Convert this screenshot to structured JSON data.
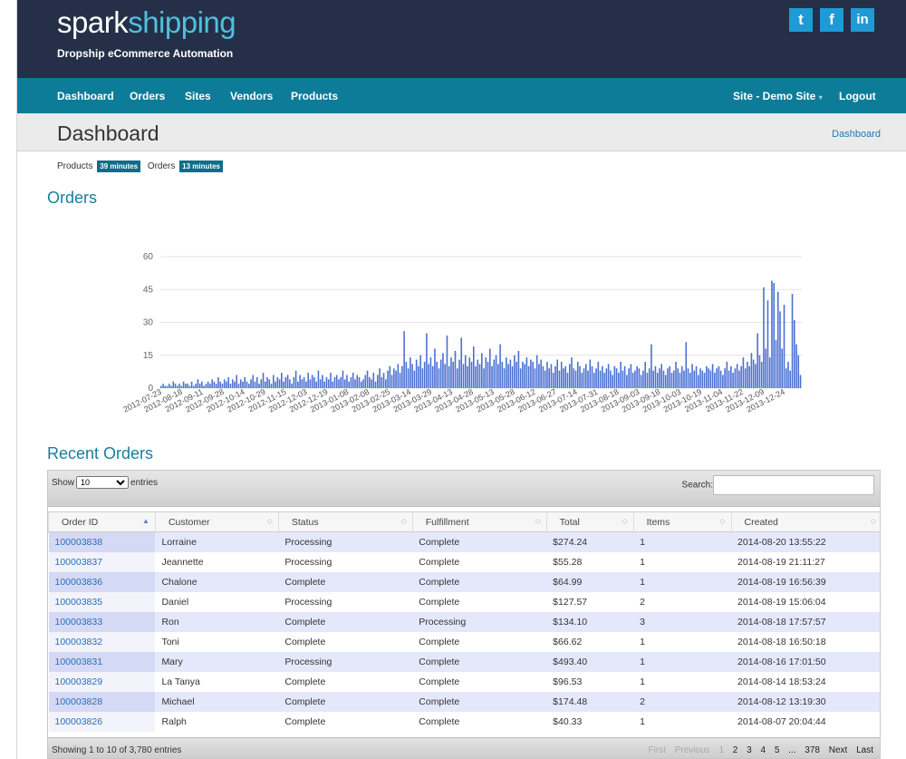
{
  "brand": {
    "name_main": "spark",
    "name_accent": "shipping",
    "tagline": "Dropship eCommerce Automation"
  },
  "social": [
    {
      "label": "t",
      "icon": "twitter-icon"
    },
    {
      "label": "f",
      "icon": "facebook-icon"
    },
    {
      "label": "in",
      "icon": "linkedin-icon"
    }
  ],
  "nav": {
    "items": [
      "Dashboard",
      "Orders",
      "Sites",
      "Vendors",
      "Products"
    ],
    "site_selector": "Site - Demo Site",
    "logout": "Logout"
  },
  "page": {
    "title": "Dashboard",
    "breadcrumb": "Dashboard"
  },
  "sync_status": {
    "products_label": "Products",
    "products_age": "39 minutes",
    "orders_label": "Orders",
    "orders_age": "13 minutes"
  },
  "orders_section": {
    "title": "Orders"
  },
  "chart_data": {
    "type": "bar",
    "title": "Orders",
    "ylim": [
      0,
      60
    ],
    "yticks": [
      0,
      15,
      30,
      45,
      60
    ],
    "grid": true,
    "x_tick_labels": [
      "2012-07-23",
      "2012-08-18",
      "2012-09-11",
      "2012-09-28",
      "2012-10-14",
      "2012-10-29",
      "2012-11-15",
      "2012-12-03",
      "2012-12-19",
      "2013-01-08",
      "2013-02-08",
      "2013-02-25",
      "2013-03-14",
      "2013-03-29",
      "2013-04-13",
      "2013-04-28",
      "2013-05-13",
      "2013-05-28",
      "2013-06-12",
      "2013-06-27",
      "2013-07-14",
      "2013-07-31",
      "2013-08-18",
      "2013-09-03",
      "2013-09-18",
      "2013-10-03",
      "2013-10-19",
      "2013-11-04",
      "2013-11-22",
      "2013-12-09",
      "2013-12-24"
    ],
    "series": [
      {
        "color": "#4a6fd3",
        "values": [
          1,
          2,
          1,
          1,
          2,
          1,
          3,
          2,
          1,
          2,
          1,
          3,
          2,
          2,
          1,
          3,
          1,
          2,
          4,
          2,
          3,
          1,
          2,
          3,
          2,
          4,
          3,
          2,
          5,
          3,
          2,
          4,
          3,
          5,
          2,
          4,
          3,
          6,
          2,
          4,
          3,
          5,
          3,
          2,
          4,
          6,
          3,
          5,
          2,
          4,
          7,
          3,
          5,
          4,
          2,
          6,
          3,
          5,
          4,
          7,
          3,
          5,
          6,
          4,
          2,
          5,
          8,
          3,
          6,
          4,
          5,
          3,
          7,
          4,
          6,
          5,
          3,
          8,
          4,
          6,
          3,
          5,
          4,
          7,
          3,
          5,
          6,
          4,
          5,
          8,
          4,
          6,
          3,
          5,
          7,
          4,
          6,
          5,
          3,
          4,
          6,
          8,
          5,
          4,
          7,
          3,
          6,
          9,
          5,
          7,
          4,
          8,
          10,
          6,
          9,
          8,
          11,
          7,
          10,
          26,
          12,
          9,
          14,
          11,
          8,
          13,
          10,
          15,
          9,
          12,
          25,
          11,
          14,
          10,
          18,
          12,
          9,
          13,
          16,
          11,
          24,
          10,
          14,
          12,
          17,
          9,
          13,
          23,
          11,
          15,
          10,
          14,
          12,
          19,
          10,
          13,
          11,
          16,
          9,
          14,
          12,
          18,
          10,
          13,
          15,
          11,
          20,
          12,
          9,
          14,
          11,
          13,
          10,
          15,
          12,
          17,
          9,
          12,
          11,
          14,
          10,
          13,
          12,
          9,
          15,
          11,
          13,
          10,
          8,
          12,
          9,
          11,
          7,
          10,
          13,
          8,
          12,
          9,
          10,
          7,
          11,
          14,
          9,
          8,
          12,
          10,
          7,
          9,
          11,
          8,
          13,
          10,
          7,
          9,
          12,
          8,
          10,
          7,
          9,
          11,
          8,
          6,
          10,
          9,
          7,
          12,
          8,
          10,
          6,
          9,
          11,
          7,
          8,
          10,
          9,
          6,
          8,
          12,
          7,
          9,
          20,
          8,
          10,
          7,
          9,
          11,
          8,
          6,
          9,
          10,
          7,
          8,
          12,
          9,
          7,
          10,
          8,
          21,
          9,
          7,
          11,
          8,
          10,
          6,
          9,
          8,
          7,
          10,
          9,
          8,
          11,
          7,
          9,
          10,
          8,
          6,
          9,
          12,
          8,
          10,
          7,
          9,
          11,
          8,
          10,
          14,
          9,
          12,
          10,
          16,
          13,
          11,
          25,
          15,
          12,
          46,
          18,
          40,
          14,
          49,
          48,
          22,
          44,
          35,
          18,
          38,
          9,
          12,
          8,
          43,
          31,
          20,
          15,
          6
        ]
      }
    ]
  },
  "recent_orders": {
    "title": "Recent Orders",
    "length_prefix": "Show",
    "length_value": "10",
    "length_suffix": "entries",
    "search_label": "Search:",
    "search_value": "",
    "columns": [
      "Order ID",
      "Customer",
      "Status",
      "Fulfillment",
      "Total",
      "Items",
      "Created"
    ],
    "rows": [
      [
        "100003838",
        "Lorraine",
        "Processing",
        "Complete",
        "$274.24",
        "1",
        "2014-08-20 13:55:22"
      ],
      [
        "100003837",
        "Jeannette",
        "Processing",
        "Complete",
        "$55.28",
        "1",
        "2014-08-19 21:11:27"
      ],
      [
        "100003836",
        "Chalone",
        "Complete",
        "Complete",
        "$64.99",
        "1",
        "2014-08-19 16:56:39"
      ],
      [
        "100003835",
        "Daniel",
        "Processing",
        "Complete",
        "$127.57",
        "2",
        "2014-08-19 15:06:04"
      ],
      [
        "100003833",
        "Ron",
        "Complete",
        "Processing",
        "$134.10",
        "3",
        "2014-08-18 17:57:57"
      ],
      [
        "100003832",
        "Toni",
        "Complete",
        "Complete",
        "$66.62",
        "1",
        "2014-08-18 16:50:18"
      ],
      [
        "100003831",
        "Mary",
        "Processing",
        "Complete",
        "$493.40",
        "1",
        "2014-08-16 17:01:50"
      ],
      [
        "100003829",
        "La Tanya",
        "Complete",
        "Complete",
        "$96.53",
        "1",
        "2014-08-14 18:53:24"
      ],
      [
        "100003828",
        "Michael",
        "Complete",
        "Complete",
        "$174.48",
        "2",
        "2014-08-12 13:19:30"
      ],
      [
        "100003826",
        "Ralph",
        "Complete",
        "Complete",
        "$40.33",
        "1",
        "2014-08-07 20:04:44"
      ]
    ],
    "info": "Showing 1 to 10 of 3,780 entries",
    "pager": {
      "first": "First",
      "previous": "Previous",
      "pages": [
        "1",
        "2",
        "3",
        "4",
        "5"
      ],
      "ellipsis": "...",
      "last_page": "378",
      "next": "Next",
      "last": "Last"
    }
  }
}
